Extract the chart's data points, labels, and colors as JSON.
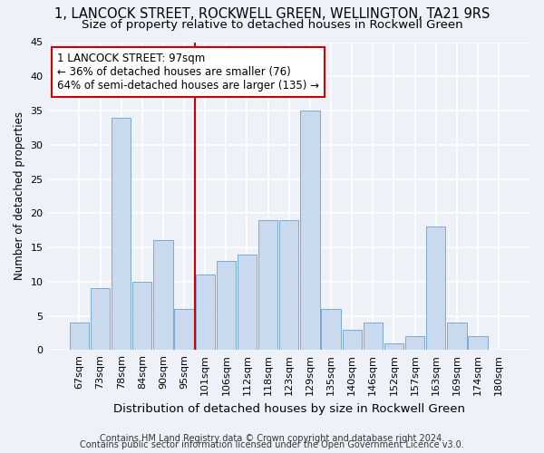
{
  "title": "1, LANCOCK STREET, ROCKWELL GREEN, WELLINGTON, TA21 9RS",
  "subtitle": "Size of property relative to detached houses in Rockwell Green",
  "xlabel": "Distribution of detached houses by size in Rockwell Green",
  "ylabel": "Number of detached properties",
  "categories": [
    "67sqm",
    "73sqm",
    "78sqm",
    "84sqm",
    "90sqm",
    "95sqm",
    "101sqm",
    "106sqm",
    "112sqm",
    "118sqm",
    "123sqm",
    "129sqm",
    "135sqm",
    "140sqm",
    "146sqm",
    "152sqm",
    "157sqm",
    "163sqm",
    "169sqm",
    "174sqm",
    "180sqm"
  ],
  "values": [
    4,
    9,
    34,
    10,
    16,
    6,
    11,
    13,
    14,
    19,
    19,
    35,
    6,
    3,
    4,
    1,
    2,
    18,
    4,
    2,
    0
  ],
  "bar_color": "#c9d9ee",
  "bar_edge_color": "#7aaad4",
  "background_color": "#eef2f8",
  "grid_color": "#ffffff",
  "annotation_box_text": "1 LANCOCK STREET: 97sqm\n← 36% of detached houses are smaller (76)\n64% of semi-detached houses are larger (135) →",
  "annotation_box_color": "#ffffff",
  "annotation_box_edge_color": "#cc0000",
  "vline_x_index": 5,
  "vline_color": "#cc0000",
  "ylim": [
    0,
    45
  ],
  "yticks": [
    0,
    5,
    10,
    15,
    20,
    25,
    30,
    35,
    40,
    45
  ],
  "footer1": "Contains HM Land Registry data © Crown copyright and database right 2024.",
  "footer2": "Contains public sector information licensed under the Open Government Licence v3.0.",
  "title_fontsize": 10.5,
  "subtitle_fontsize": 9.5,
  "xlabel_fontsize": 9.5,
  "ylabel_fontsize": 8.5,
  "tick_fontsize": 8,
  "annotation_fontsize": 8.5,
  "footer_fontsize": 7
}
